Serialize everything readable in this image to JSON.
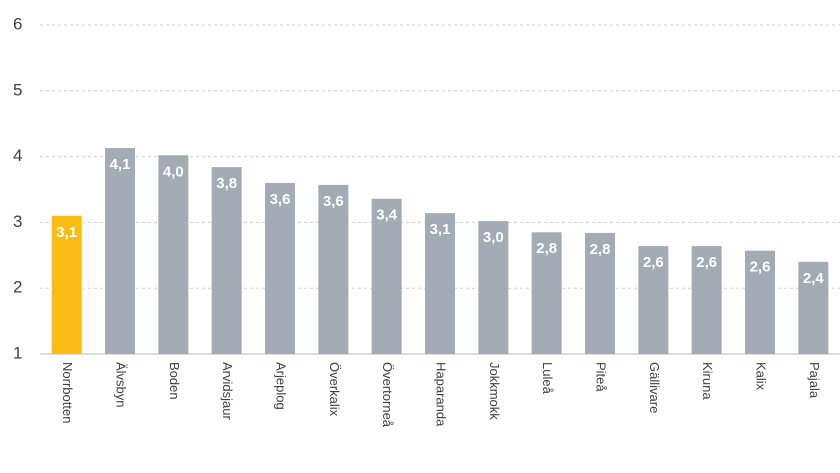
{
  "chart_data": {
    "type": "bar",
    "categories": [
      "Norrbotten",
      "Älvsbyn",
      "Boden",
      "Arvidsjaur",
      "Arjeplog",
      "Överkalix",
      "Övertorneå",
      "Haparanda",
      "Jokkmokk",
      "Luleå",
      "Piteå",
      "Gällivare",
      "Kiruna",
      "Kalix",
      "Pajala"
    ],
    "values": [
      3.1,
      4.13,
      4.02,
      3.84,
      3.6,
      3.57,
      3.36,
      3.14,
      3.02,
      2.85,
      2.84,
      2.64,
      2.64,
      2.57,
      2.4
    ],
    "value_labels": [
      "3,1",
      "4,1",
      "4,0",
      "3,8",
      "3,6",
      "3,6",
      "3,4",
      "3,1",
      "3,0",
      "2,8",
      "2,8",
      "2,6",
      "2,6",
      "2,6",
      "2,4"
    ],
    "colors": [
      "#fbbc14",
      "#a3abb4",
      "#a3abb4",
      "#a3abb4",
      "#a3abb4",
      "#a3abb4",
      "#a3abb4",
      "#a3abb4",
      "#a3abb4",
      "#a3abb4",
      "#a3abb4",
      "#a3abb4",
      "#a3abb4",
      "#a3abb4",
      "#a3abb4"
    ],
    "ylim": [
      1,
      6
    ],
    "yticks": [
      1,
      2,
      3,
      4,
      5,
      6
    ],
    "grid": true
  }
}
